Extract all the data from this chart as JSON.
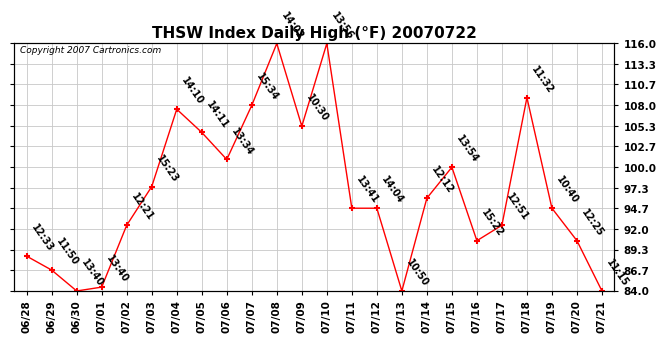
{
  "title": "THSW Index Daily High (°F) 20070722",
  "copyright": "Copyright 2007 Cartronics.com",
  "dates": [
    "06/28",
    "06/29",
    "06/30",
    "07/01",
    "07/02",
    "07/03",
    "07/04",
    "07/05",
    "07/06",
    "07/07",
    "07/08",
    "07/09",
    "07/10",
    "07/11",
    "07/12",
    "07/13",
    "07/14",
    "07/15",
    "07/16",
    "07/17",
    "07/18",
    "07/19",
    "07/20",
    "07/21"
  ],
  "values": [
    88.5,
    86.7,
    84.0,
    84.5,
    92.5,
    97.5,
    107.5,
    104.5,
    101.0,
    108.0,
    116.0,
    105.3,
    116.0,
    94.7,
    94.7,
    84.0,
    96.0,
    100.0,
    90.5,
    92.5,
    109.0,
    94.7,
    90.5,
    84.0
  ],
  "times": [
    "12:33",
    "11:50",
    "13:40",
    "13:40",
    "12:21",
    "15:23",
    "14:10",
    "14:11",
    "13:34",
    "15:34",
    "14:02",
    "10:30",
    "13:56",
    "13:41",
    "14:04",
    "10:50",
    "12:12",
    "13:54",
    "15:22",
    "12:51",
    "11:32",
    "10:40",
    "12:25",
    "11:15"
  ],
  "line_color": "#ff0000",
  "marker": "+",
  "marker_size": 5,
  "marker_edge_width": 1.5,
  "bg_color": "#ffffff",
  "grid_color": "#c8c8c8",
  "ylim": [
    84.0,
    116.0
  ],
  "yticks": [
    84.0,
    86.7,
    89.3,
    92.0,
    94.7,
    97.3,
    100.0,
    102.7,
    105.3,
    108.0,
    110.7,
    113.3,
    116.0
  ],
  "title_fontsize": 11,
  "tick_fontsize": 7.5,
  "label_fontsize": 7,
  "copyright_fontsize": 6.5
}
